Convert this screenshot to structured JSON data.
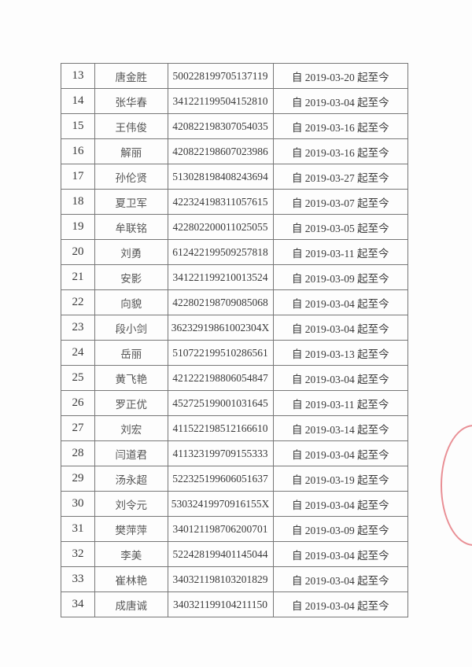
{
  "rows": [
    [
      "13",
      "唐金胜",
      "500228199705137119",
      "自 2019-03-20 起至今"
    ],
    [
      "14",
      "张华春",
      "341221199504152810",
      "自 2019-03-04 起至今"
    ],
    [
      "15",
      "王伟俊",
      "420822198307054035",
      "自 2019-03-16 起至今"
    ],
    [
      "16",
      "解丽",
      "420822198607023986",
      "自 2019-03-16 起至今"
    ],
    [
      "17",
      "孙伦贤",
      "513028198408243694",
      "自 2019-03-27 起至今"
    ],
    [
      "18",
      "夏卫军",
      "422324198311057615",
      "自 2019-03-07 起至今"
    ],
    [
      "19",
      "牟联铭",
      "422802200011025055",
      "自 2019-03-05 起至今"
    ],
    [
      "20",
      "刘勇",
      "612422199509257818",
      "自 2019-03-11 起至今"
    ],
    [
      "21",
      "安影",
      "341221199210013524",
      "自 2019-03-09 起至今"
    ],
    [
      "22",
      "向貌",
      "422802198709085068",
      "自 2019-03-04 起至今"
    ],
    [
      "23",
      "段小剑",
      "36232919861002304X",
      "自 2019-03-04 起至今"
    ],
    [
      "24",
      "岳丽",
      "510722199510286561",
      "自 2019-03-13 起至今"
    ],
    [
      "25",
      "黄飞艳",
      "421222198806054847",
      "自 2019-03-04 起至今"
    ],
    [
      "26",
      "罗正优",
      "452725199001031645",
      "自 2019-03-11 起至今"
    ],
    [
      "27",
      "刘宏",
      "411522198512166610",
      "自 2019-03-14 起至今"
    ],
    [
      "28",
      "闫道君",
      "411323199709155333",
      "自 2019-03-04 起至今"
    ],
    [
      "29",
      "汤永超",
      "522325199606051637",
      "自 2019-03-19 起至今"
    ],
    [
      "30",
      "刘令元",
      "53032419970916155X",
      "自 2019-03-04 起至今"
    ],
    [
      "31",
      "樊萍萍",
      "340121198706200701",
      "自 2019-03-09 起至今"
    ],
    [
      "32",
      "李美",
      "522428199401145044",
      "自 2019-03-04 起至今"
    ],
    [
      "33",
      "崔林艳",
      "340321198103201829",
      "自 2019-03-04 起至今"
    ],
    [
      "34",
      "成唐诚",
      "340321199104211150",
      "自 2019-03-04 起至今"
    ]
  ],
  "stamp_color": "#dc4650"
}
